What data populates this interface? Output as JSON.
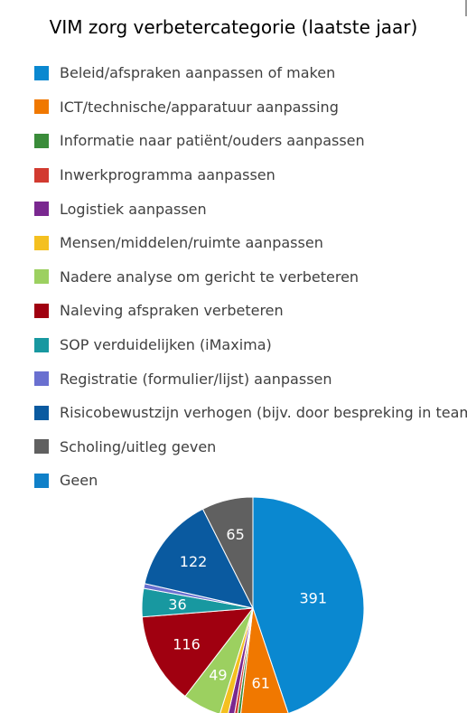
{
  "chart_data": {
    "type": "pie",
    "title": "VIM zorg verbetercategorie (laatste jaar)",
    "legend_position": "top",
    "categories": [
      "Beleid/afspraken aanpassen of maken",
      "ICT/technische/apparatuur aanpassing",
      "Informatie naar patiënt/ouders aanpassen",
      "Inwerkprogramma aanpassen",
      "Logistiek aanpassen",
      "Mensen/middelen/ruimte aanpassen",
      "Nadere analyse om gericht te verbeteren",
      "Naleving afspraken verbeteren",
      "SOP verduidelijken (iMaxima)",
      "Registratie (formulier/lijst) aanpassen",
      "Risicobewustzijn verhogen (bijv. door bespreking in team)",
      "Scholing/uitleg geven",
      "Geen"
    ],
    "values": [
      391,
      61,
      4,
      4,
      8,
      10,
      49,
      116,
      36,
      6,
      122,
      65,
      0
    ],
    "data_labels": [
      "391",
      "61",
      "",
      "",
      "",
      "",
      "49",
      "116",
      "36",
      "",
      "122",
      "65",
      ""
    ],
    "colors": [
      "#0a88d0",
      "#f07800",
      "#3a8c3a",
      "#d23a30",
      "#7a2890",
      "#f4c020",
      "#9cd060",
      "#a00010",
      "#1898a0",
      "#6a70d0",
      "#0a5aa0",
      "#606060",
      "#1080c8"
    ]
  }
}
